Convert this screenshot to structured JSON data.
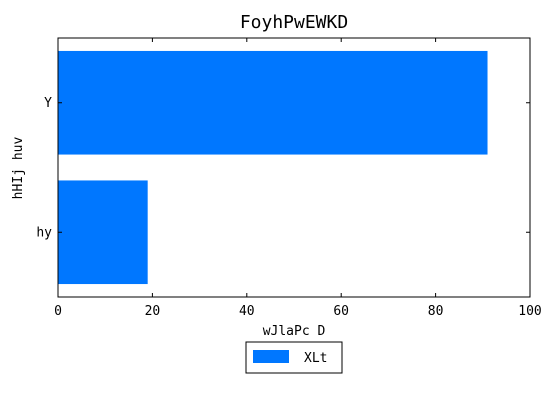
{
  "chart_data": {
    "type": "bar",
    "orientation": "horizontal",
    "title": "FoyhPwEWKD",
    "xlabel": "wJlaPc  D",
    "ylabel": "hHIj  huv",
    "categories": [
      "Y",
      "hy"
    ],
    "series": [
      {
        "name": "XLt",
        "values": [
          91,
          19
        ]
      }
    ],
    "xlim": [
      0,
      100
    ],
    "xticks": [
      "0",
      "20",
      "40",
      "60",
      "80",
      "100"
    ],
    "grid": false,
    "legend": "bottom-center",
    "colors": {
      "bar": "#0077ff",
      "axis": "#000000",
      "background": "#ffffff"
    }
  }
}
